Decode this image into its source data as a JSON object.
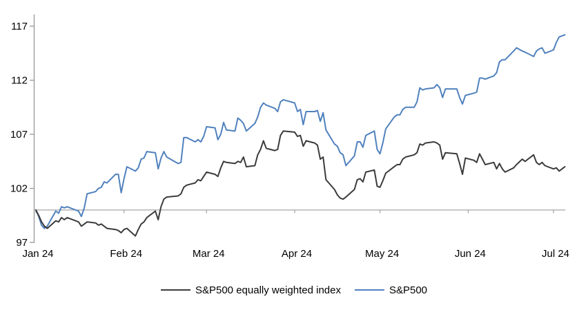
{
  "chart_data": {
    "type": "line",
    "title": "",
    "xlabel": "",
    "ylabel": "",
    "x_tick_labels": [
      "Jan 24",
      "Feb 24",
      "Mar 24",
      "Apr 24",
      "May 24",
      "Jun 24",
      "Jul 24"
    ],
    "y_ticks": [
      97,
      102,
      107,
      112,
      117
    ],
    "ylim": [
      97,
      117
    ],
    "baseline_value": 100,
    "grid": "off",
    "legend_position": "bottom-center",
    "colors": {
      "equal_weight_line": "#3b3b3b",
      "sp500_line": "#4f81bd",
      "axis": "#9c9c9c",
      "baseline": "#a6a6a6"
    },
    "dates": [
      "01-01",
      "01-02",
      "01-03",
      "01-04",
      "01-05",
      "01-08",
      "01-09",
      "01-10",
      "01-11",
      "01-12",
      "01-16",
      "01-17",
      "01-18",
      "01-19",
      "01-22",
      "01-23",
      "01-24",
      "01-25",
      "01-26",
      "01-29",
      "01-30",
      "01-31",
      "02-01",
      "02-02",
      "02-05",
      "02-06",
      "02-07",
      "02-08",
      "02-09",
      "02-12",
      "02-13",
      "02-14",
      "02-15",
      "02-16",
      "02-20",
      "02-21",
      "02-22",
      "02-23",
      "02-26",
      "02-27",
      "02-28",
      "02-29",
      "03-01",
      "03-04",
      "03-05",
      "03-06",
      "03-07",
      "03-08",
      "03-11",
      "03-12",
      "03-13",
      "03-14",
      "03-15",
      "03-18",
      "03-19",
      "03-20",
      "03-21",
      "03-22",
      "03-25",
      "03-26",
      "03-27",
      "03-28",
      "04-01",
      "04-02",
      "04-03",
      "04-04",
      "04-05",
      "04-08",
      "04-09",
      "04-10",
      "04-11",
      "04-12",
      "04-15",
      "04-16",
      "04-17",
      "04-18",
      "04-19",
      "04-22",
      "04-23",
      "04-24",
      "04-25",
      "04-26",
      "04-29",
      "04-30",
      "05-01",
      "05-02",
      "05-03",
      "05-06",
      "05-07",
      "05-08",
      "05-09",
      "05-10",
      "05-13",
      "05-14",
      "05-15",
      "05-16",
      "05-17",
      "05-20",
      "05-21",
      "05-22",
      "05-23",
      "05-24",
      "05-28",
      "05-29",
      "05-30",
      "05-31",
      "06-03",
      "06-04",
      "06-05",
      "06-06",
      "06-07",
      "06-10",
      "06-11",
      "06-12",
      "06-13",
      "06-14",
      "06-17",
      "06-18",
      "06-20",
      "06-21",
      "06-24",
      "06-25",
      "06-26",
      "06-27",
      "06-28",
      "07-01",
      "07-02",
      "07-03",
      "07-05"
    ],
    "series": [
      {
        "name": "S&P500 equally weighted index",
        "color": "#3b3b3b",
        "values": [
          100.0,
          99.5,
          98.9,
          98.5,
          98.3,
          99.0,
          98.9,
          99.3,
          99.1,
          99.3,
          98.9,
          98.5,
          98.7,
          98.9,
          98.8,
          98.6,
          98.7,
          98.5,
          98.3,
          98.2,
          98.1,
          97.9,
          98.2,
          98.3,
          97.6,
          98.2,
          98.7,
          98.9,
          99.3,
          99.9,
          99.1,
          100.3,
          101.0,
          101.2,
          101.3,
          101.5,
          102.1,
          102.3,
          102.5,
          102.8,
          102.7,
          103.1,
          103.5,
          103.3,
          103.1,
          103.9,
          104.5,
          104.4,
          104.3,
          104.5,
          104.4,
          104.9,
          104.0,
          104.1,
          105.1,
          105.6,
          106.4,
          105.7,
          105.5,
          105.6,
          106.9,
          107.3,
          107.2,
          106.8,
          106.9,
          105.9,
          106.4,
          106.2,
          106.0,
          104.7,
          104.9,
          102.8,
          101.9,
          101.4,
          101.1,
          101.0,
          101.2,
          101.9,
          102.8,
          102.9,
          102.6,
          103.5,
          103.7,
          102.2,
          102.1,
          102.7,
          103.4,
          104.0,
          104.2,
          104.2,
          104.7,
          104.9,
          105.1,
          105.3,
          106.1,
          106.0,
          106.2,
          106.3,
          106.2,
          106.0,
          104.7,
          105.3,
          105.2,
          104.3,
          103.3,
          104.8,
          104.6,
          104.4,
          105.2,
          104.7,
          104.2,
          104.4,
          103.8,
          104.3,
          103.8,
          103.5,
          103.9,
          104.2,
          104.7,
          104.5,
          105.1,
          104.4,
          104.2,
          104.4,
          104.1,
          103.8,
          103.9,
          103.6,
          104.0
        ]
      },
      {
        "name": "S&P500",
        "color": "#4f81bd",
        "values": [
          100.0,
          99.4,
          98.6,
          98.3,
          98.5,
          99.9,
          99.7,
          100.3,
          100.2,
          100.3,
          99.9,
          99.4,
          100.2,
          101.5,
          101.7,
          102.0,
          102.1,
          102.6,
          102.5,
          103.3,
          103.3,
          101.6,
          102.9,
          104.0,
          103.6,
          103.9,
          104.7,
          104.8,
          105.4,
          105.3,
          103.8,
          104.8,
          105.4,
          104.9,
          104.3,
          104.4,
          106.7,
          106.7,
          106.3,
          106.5,
          106.3,
          106.8,
          107.7,
          107.6,
          106.5,
          107.0,
          108.1,
          107.4,
          107.3,
          108.5,
          108.3,
          108.0,
          107.3,
          108.0,
          108.6,
          109.5,
          109.9,
          109.7,
          109.4,
          109.1,
          110.0,
          110.2,
          109.9,
          109.1,
          109.3,
          107.9,
          109.1,
          109.1,
          109.2,
          108.2,
          109.0,
          107.4,
          106.1,
          105.9,
          105.3,
          105.1,
          104.1,
          105.0,
          106.3,
          106.3,
          105.8,
          106.9,
          107.3,
          105.6,
          105.2,
          106.2,
          107.5,
          108.6,
          108.8,
          108.8,
          109.3,
          109.5,
          109.5,
          110.0,
          111.3,
          111.1,
          111.2,
          111.3,
          111.6,
          111.3,
          110.4,
          111.2,
          111.2,
          110.4,
          109.8,
          110.6,
          110.8,
          110.9,
          112.2,
          112.2,
          112.1,
          112.4,
          112.7,
          113.7,
          113.9,
          113.9,
          114.7,
          115.0,
          114.7,
          114.6,
          114.2,
          114.7,
          114.9,
          115.0,
          114.5,
          114.8,
          115.5,
          116.0,
          116.2
        ]
      }
    ]
  }
}
